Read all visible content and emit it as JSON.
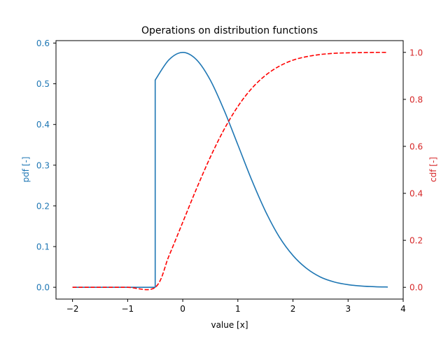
{
  "chart_data": {
    "type": "line",
    "title": "Operations on distribution functions",
    "xlabel": "value [x]",
    "ylabel_left": "pdf [-]",
    "ylabel_right": "cdf [-]",
    "xlim": [
      -2.3,
      4.0
    ],
    "ylim_left": [
      -0.029,
      0.606
    ],
    "ylim_right": [
      -0.05,
      1.05
    ],
    "x_ticks": [
      -2,
      -1,
      0,
      1,
      2,
      3,
      4
    ],
    "x_tick_labels": [
      "−2",
      "−1",
      "0",
      "1",
      "2",
      "3",
      "4"
    ],
    "y_left_ticks": [
      0.0,
      0.1,
      0.2,
      0.3,
      0.4,
      0.5,
      0.6
    ],
    "y_left_tick_labels": [
      "0.0",
      "0.1",
      "0.2",
      "0.3",
      "0.4",
      "0.5",
      "0.6"
    ],
    "y_right_ticks": [
      0.0,
      0.2,
      0.4,
      0.6,
      0.8,
      1.0
    ],
    "y_right_tick_labels": [
      "0.0",
      "0.2",
      "0.4",
      "0.6",
      "0.8",
      "1.0"
    ],
    "grid": false,
    "legend": null,
    "series": [
      {
        "name": "pdf",
        "axis": "left",
        "color": "#1f77b4",
        "linestyle": "solid",
        "x": [
          -2.0,
          -1.5,
          -1.0,
          -0.5,
          -0.5,
          -0.25,
          0.0,
          0.25,
          0.5,
          0.75,
          1.0,
          1.25,
          1.5,
          1.75,
          2.0,
          2.25,
          2.5,
          2.75,
          3.0,
          3.25,
          3.5,
          3.72
        ],
        "values": [
          0.0,
          0.0,
          0.0,
          0.0,
          0.509,
          0.559,
          0.577,
          0.559,
          0.509,
          0.435,
          0.35,
          0.264,
          0.187,
          0.124,
          0.078,
          0.046,
          0.025,
          0.013,
          0.0064,
          0.0029,
          0.0013,
          0.0006
        ]
      },
      {
        "name": "cdf",
        "axis": "right",
        "color": "#ff0000",
        "linestyle": "dashed",
        "x": [
          -2.0,
          -1.5,
          -1.0,
          -0.5,
          -0.25,
          0.0,
          0.25,
          0.5,
          0.75,
          1.0,
          1.25,
          1.5,
          1.75,
          2.0,
          2.25,
          2.5,
          2.75,
          3.0,
          3.25,
          3.5,
          3.72
        ],
        "values": [
          0.0,
          0.0,
          0.0,
          0.0,
          0.134,
          0.277,
          0.42,
          0.554,
          0.672,
          0.77,
          0.846,
          0.902,
          0.941,
          0.967,
          0.982,
          0.991,
          0.996,
          0.998,
          0.999,
          1.0,
          1.0
        ]
      }
    ]
  },
  "colors": {
    "left_axis": "#1f77b4",
    "right_axis": "#d62728",
    "frame": "#000000",
    "background": "#ffffff"
  }
}
